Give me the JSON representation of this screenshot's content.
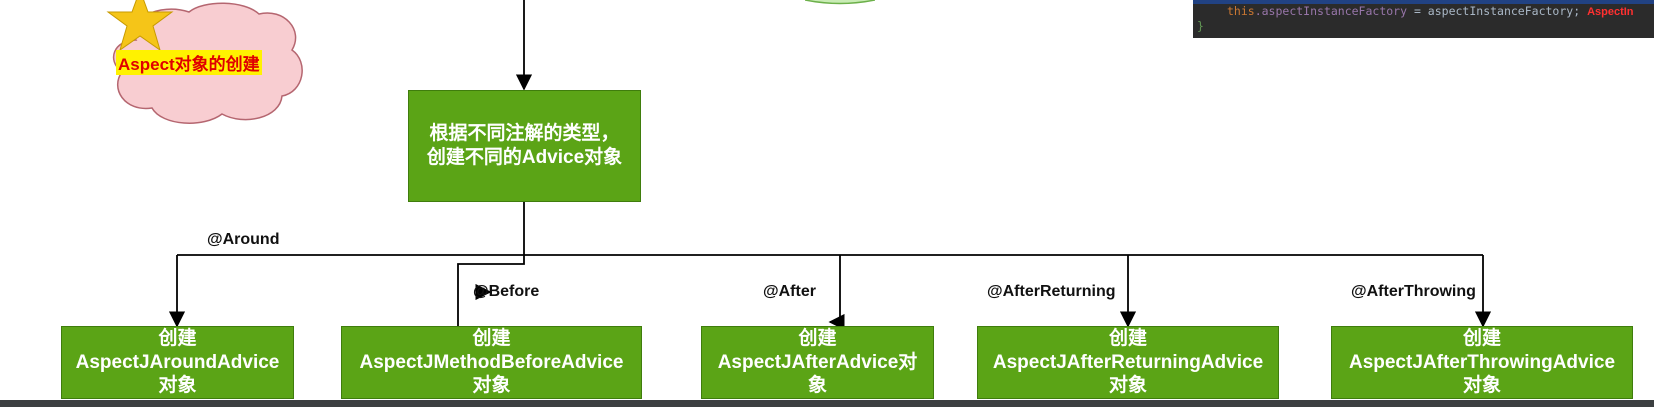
{
  "cloud": {
    "label": "Aspect对象的创建"
  },
  "root_box": {
    "line1": "根据不同注解的类型，",
    "line2": "创建不同的Advice对象"
  },
  "edges": [
    {
      "label": "@Around"
    },
    {
      "label": "@Before"
    },
    {
      "label": "@After"
    },
    {
      "label": "@AfterReturning"
    },
    {
      "label": "@AfterThrowing"
    }
  ],
  "targets": [
    {
      "line1": "创建",
      "line2": "AspectJAroundAdvice",
      "line3": "对象"
    },
    {
      "line1": "创建",
      "line2": "AspectJMethodBeforeAdvice",
      "line3": "对象"
    },
    {
      "line1": "创建",
      "line2": "AspectJAfterAdvice对",
      "line3": "象"
    },
    {
      "line1": "创建",
      "line2": "AspectJAfterReturningAdvice",
      "line3": "对象"
    },
    {
      "line1": "创建",
      "line2": "AspectJAfterThrowingAdvice",
      "line3": "对象"
    }
  ],
  "code": {
    "keyword": "this",
    "field": ".aspectInstanceFactory",
    "rest": " = aspectInstanceFactory;",
    "annotation": "AspectIn",
    "brace": "}"
  },
  "colors": {
    "box_green": "#5ba416",
    "cloud_pink": "#f8cdd1",
    "star_gold": "#f5c518",
    "highlight_yellow": "#fff200",
    "label_red": "#e00000"
  }
}
